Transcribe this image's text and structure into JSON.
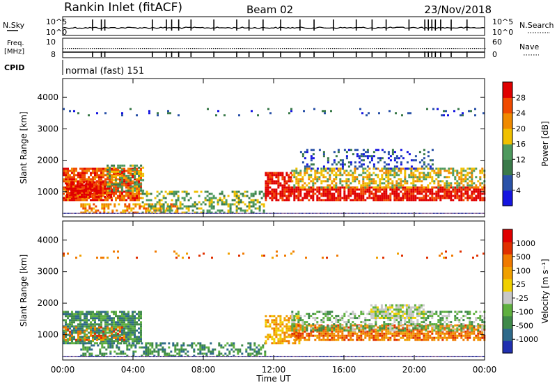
{
  "header": {
    "station": "Rankin Inlet (fitACF)",
    "beam": "Beam 02",
    "date": "23/Nov/2018"
  },
  "top_panels": {
    "nsky_label": "N.Sky",
    "nsearch_label": "N.Search",
    "freq_label_1": "Freq.",
    "freq_label_2": "[MHz]",
    "nave_label": "Nave",
    "cpid_label": "CPID",
    "cpid_text": "normal (fast) 151",
    "noise_left_ticks": [
      "10^5",
      "10^0"
    ],
    "noise_right_ticks": [
      "10^5",
      "10^0"
    ],
    "freq_left_ticks": [
      "10",
      "8"
    ],
    "nave_right_ticks": [
      "60",
      "0"
    ]
  },
  "colors": {
    "power_scale": [
      "#1515e0",
      "#2a52a8",
      "#3a7a4a",
      "#4e9a5e",
      "#f0c000",
      "#f08a00",
      "#f04a00",
      "#e00000"
    ],
    "velocity_scale": [
      "#2030b0",
      "#2e6a8a",
      "#3f8a4a",
      "#5fb040",
      "#c8c8c8",
      "#f0d000",
      "#f0a000",
      "#f07a00",
      "#e03000",
      "#e00000"
    ]
  },
  "chart_data": [
    {
      "type": "heatmap",
      "name": "power-panel",
      "xlabel": "",
      "ylabel": "Slant Range [km]",
      "ylim": [
        200,
        4600
      ],
      "yticks": [
        1000,
        2000,
        3000,
        4000
      ],
      "xlim": [
        0,
        24
      ],
      "colorbar_label": "Power [dB]",
      "colorbar_ticks": [
        "28",
        "24",
        "20",
        "16",
        "12",
        "8",
        "4"
      ],
      "bands": [
        {
          "t0": 0.0,
          "t1": 4.4,
          "r0": 700,
          "r1": 1700,
          "level": 6,
          "density": 0.85
        },
        {
          "t0": 0.2,
          "t1": 2.8,
          "r0": 800,
          "r1": 1300,
          "level": 7,
          "density": 0.75
        },
        {
          "t0": 2.5,
          "t1": 4.6,
          "r0": 1000,
          "r1": 1800,
          "level": 3,
          "density": 0.5
        },
        {
          "t0": 1.0,
          "t1": 6.5,
          "r0": 300,
          "r1": 600,
          "level": 5,
          "density": 0.5
        },
        {
          "t0": 4.5,
          "t1": 11.5,
          "r0": 300,
          "r1": 1000,
          "level": 3,
          "density": 0.45
        },
        {
          "t0": 11.5,
          "t1": 13.0,
          "r0": 700,
          "r1": 1600,
          "level": 7,
          "density": 0.8
        },
        {
          "t0": 13.0,
          "t1": 24.0,
          "r0": 700,
          "r1": 1100,
          "level": 7,
          "density": 0.8
        },
        {
          "t0": 13.0,
          "t1": 24.0,
          "r0": 1100,
          "r1": 1700,
          "level": 4,
          "density": 0.55
        },
        {
          "t0": 13.5,
          "t1": 21.0,
          "r0": 1700,
          "r1": 2300,
          "level": 1,
          "density": 0.25
        },
        {
          "t0": 0.0,
          "t1": 24.0,
          "r0": 3400,
          "r1": 3600,
          "level": 1,
          "density": 0.08
        }
      ]
    },
    {
      "type": "heatmap",
      "name": "velocity-panel",
      "xlabel": "Time UT",
      "ylabel": "Slant Range [km]",
      "ylim": [
        200,
        4600
      ],
      "yticks": [
        1000,
        2000,
        3000,
        4000
      ],
      "xlim": [
        0,
        24
      ],
      "xticks": [
        "00:00",
        "04:00",
        "08:00",
        "12:00",
        "16:00",
        "20:00",
        "00:00"
      ],
      "colorbar_label": "Velocity [m s⁻¹]",
      "colorbar_ticks": [
        "1000",
        "500",
        "100",
        "25",
        "-25",
        "-100",
        "-500",
        "-1000"
      ],
      "bands": [
        {
          "t0": 0.0,
          "t1": 4.4,
          "r0": 700,
          "r1": 1700,
          "level": 2,
          "density": 0.8
        },
        {
          "t0": 0.0,
          "t1": 3.5,
          "r0": 800,
          "r1": 1200,
          "level": 7,
          "density": 0.35
        },
        {
          "t0": 1.0,
          "t1": 11.5,
          "r0": 300,
          "r1": 700,
          "level": 2,
          "density": 0.45
        },
        {
          "t0": 11.5,
          "t1": 13.5,
          "r0": 700,
          "r1": 1600,
          "level": 6,
          "density": 0.6
        },
        {
          "t0": 13.0,
          "t1": 24.0,
          "r0": 800,
          "r1": 1300,
          "level": 7,
          "density": 0.75
        },
        {
          "t0": 13.0,
          "t1": 24.0,
          "r0": 1100,
          "r1": 1700,
          "level": 3,
          "density": 0.5
        },
        {
          "t0": 17.5,
          "t1": 20.5,
          "r0": 1500,
          "r1": 1900,
          "level": 4,
          "density": 0.8
        },
        {
          "t0": 0.0,
          "t1": 24.0,
          "r0": 3400,
          "r1": 3600,
          "level": 7,
          "density": 0.06
        }
      ]
    }
  ]
}
